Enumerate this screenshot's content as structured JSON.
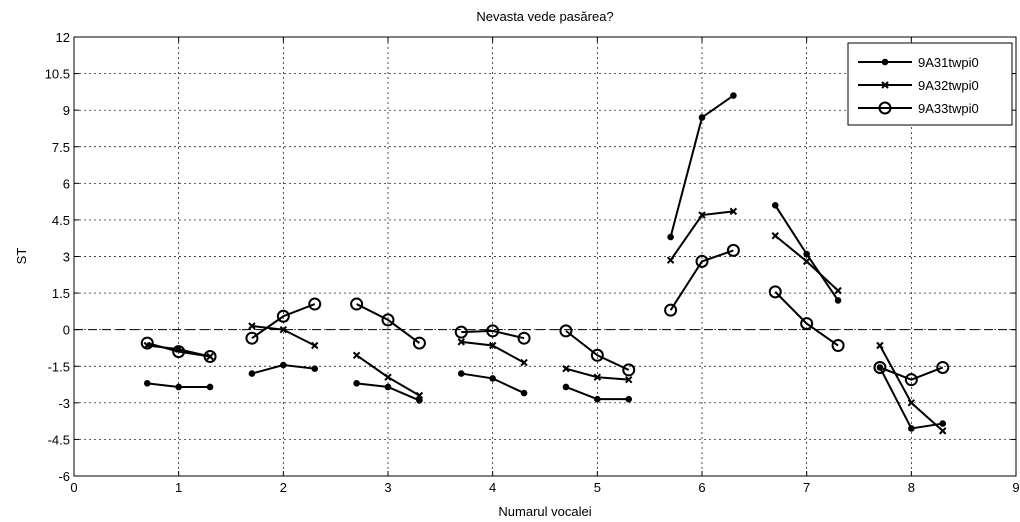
{
  "chart_data": {
    "type": "line",
    "title": "Nevasta vede pasărea?",
    "xlabel": "Numarul vocalei",
    "ylabel": "ST",
    "xlim": [
      0,
      9
    ],
    "ylim": [
      -6,
      12
    ],
    "x_ticks": [
      "0",
      "1",
      "2",
      "3",
      "4",
      "5",
      "6",
      "7",
      "8",
      "9"
    ],
    "y_ticks": [
      "-6",
      "-4.5",
      "-3",
      "-1.5",
      "0",
      "1.5",
      "3",
      "4.5",
      "6",
      "7.5",
      "9",
      "10.5",
      "12"
    ],
    "grid": true,
    "zero_line": "dashed",
    "legend_position": "top-right",
    "series": [
      {
        "name": "9A31twpi0",
        "marker": "dot",
        "color": "#000000",
        "segments": [
          {
            "x": [
              0.7,
              1.0,
              1.3
            ],
            "y": [
              -2.2,
              -2.35,
              -2.35
            ]
          },
          {
            "x": [
              1.7,
              2.0,
              2.3
            ],
            "y": [
              -1.8,
              -1.45,
              -1.6
            ]
          },
          {
            "x": [
              2.7,
              3.0,
              3.3
            ],
            "y": [
              -2.2,
              -2.35,
              -2.9
            ]
          },
          {
            "x": [
              3.7,
              4.0,
              4.3
            ],
            "y": [
              -1.8,
              -2.0,
              -2.6
            ]
          },
          {
            "x": [
              4.7,
              5.0,
              5.3
            ],
            "y": [
              -2.35,
              -2.85,
              -2.85
            ]
          },
          {
            "x": [
              5.7,
              6.0,
              6.3
            ],
            "y": [
              3.8,
              8.7,
              9.6
            ]
          },
          {
            "x": [
              6.7,
              7.0,
              7.3
            ],
            "y": [
              5.1,
              3.1,
              1.2
            ]
          },
          {
            "x": [
              7.7,
              8.0,
              8.3
            ],
            "y": [
              -1.55,
              -4.05,
              -3.85
            ]
          }
        ]
      },
      {
        "name": "9A32twpi0",
        "marker": "x",
        "color": "#000000",
        "segments": [
          {
            "x": [
              0.7,
              1.0,
              1.3
            ],
            "y": [
              -0.65,
              -0.8,
              -1.1
            ]
          },
          {
            "x": [
              1.7,
              2.0,
              2.3
            ],
            "y": [
              0.15,
              0.0,
              -0.65
            ]
          },
          {
            "x": [
              2.7,
              3.0,
              3.3
            ],
            "y": [
              -1.05,
              -1.95,
              -2.7
            ]
          },
          {
            "x": [
              3.7,
              4.0,
              4.3
            ],
            "y": [
              -0.5,
              -0.65,
              -1.35
            ]
          },
          {
            "x": [
              4.7,
              5.0,
              5.3
            ],
            "y": [
              -1.6,
              -1.95,
              -2.05
            ]
          },
          {
            "x": [
              5.7,
              6.0,
              6.3
            ],
            "y": [
              2.85,
              4.7,
              4.85
            ]
          },
          {
            "x": [
              6.7,
              7.0,
              7.3
            ],
            "y": [
              3.85,
              2.8,
              1.6
            ]
          },
          {
            "x": [
              7.7,
              8.0,
              8.3
            ],
            "y": [
              -0.65,
              -3.0,
              -4.15
            ]
          }
        ]
      },
      {
        "name": "9A33twpi0",
        "marker": "circle",
        "color": "#000000",
        "segments": [
          {
            "x": [
              0.7,
              1.0,
              1.3
            ],
            "y": [
              -0.55,
              -0.9,
              -1.1
            ]
          },
          {
            "x": [
              1.7,
              2.0,
              2.3
            ],
            "y": [
              -0.35,
              0.55,
              1.05
            ]
          },
          {
            "x": [
              2.7,
              3.0,
              3.3
            ],
            "y": [
              1.05,
              0.4,
              -0.55
            ]
          },
          {
            "x": [
              3.7,
              4.0,
              4.3
            ],
            "y": [
              -0.1,
              -0.05,
              -0.35
            ]
          },
          {
            "x": [
              4.7,
              5.0,
              5.3
            ],
            "y": [
              -0.05,
              -1.05,
              -1.65
            ]
          },
          {
            "x": [
              5.7,
              6.0,
              6.3
            ],
            "y": [
              0.8,
              2.8,
              3.25
            ]
          },
          {
            "x": [
              6.7,
              7.0,
              7.3
            ],
            "y": [
              1.55,
              0.25,
              -0.65
            ]
          },
          {
            "x": [
              7.7,
              8.0,
              8.3
            ],
            "y": [
              -1.55,
              -2.05,
              -1.55
            ]
          }
        ]
      }
    ]
  }
}
